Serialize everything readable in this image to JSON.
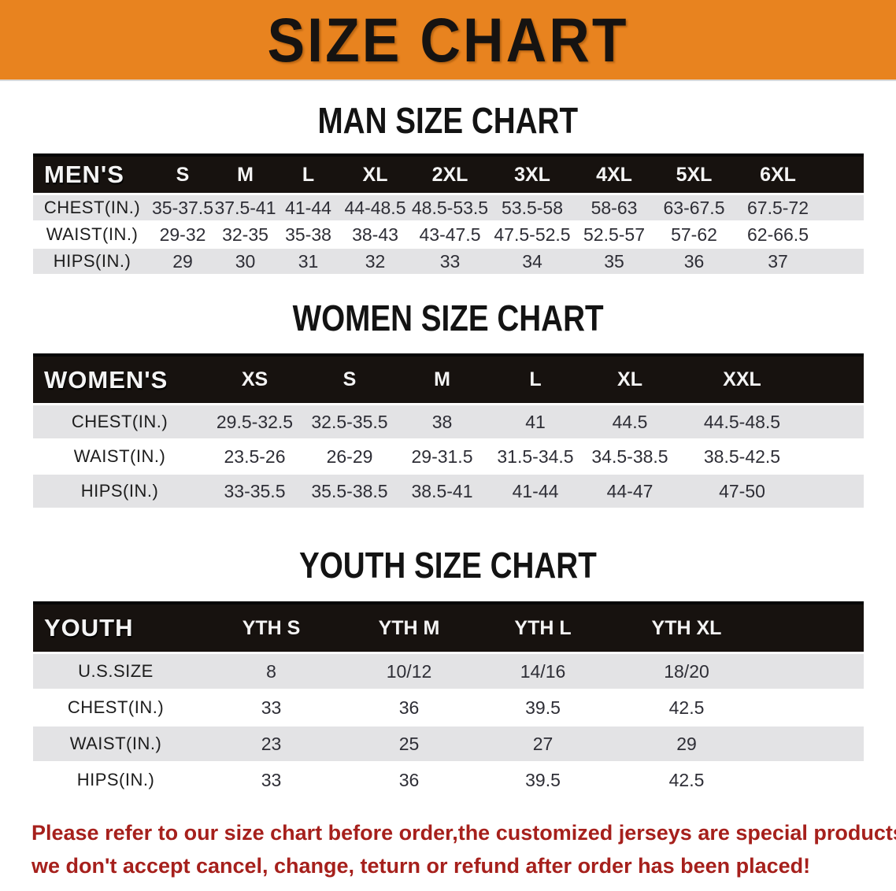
{
  "banner": {
    "title": "SIZE CHART",
    "bg_color": "#E8831F",
    "text_color": "#161311"
  },
  "sections": [
    {
      "id": "men",
      "heading": "MAN SIZE CHART",
      "table": {
        "header_label": "MEN'S",
        "columns": [
          "S",
          "M",
          "L",
          "XL",
          "2XL",
          "3XL",
          "4XL",
          "5XL",
          "6XL"
        ],
        "rows": [
          {
            "label": "CHEST(IN.)",
            "values": [
              "35-37.5",
              "37.5-41",
              "41-44",
              "44-48.5",
              "48.5-53.5",
              "53.5-58",
              "58-63",
              "63-67.5",
              "67.5-72"
            ]
          },
          {
            "label": "WAIST(IN.)",
            "values": [
              "29-32",
              "32-35",
              "35-38",
              "38-43",
              "43-47.5",
              "47.5-52.5",
              "52.5-57",
              "57-62",
              "62-66.5"
            ]
          },
          {
            "label": "HIPS(IN.)",
            "values": [
              "29",
              "30",
              "31",
              "32",
              "33",
              "34",
              "35",
              "36",
              "37"
            ]
          }
        ]
      }
    },
    {
      "id": "women",
      "heading": "WOMEN SIZE CHART",
      "table": {
        "header_label": "WOMEN'S",
        "columns": [
          "XS",
          "S",
          "M",
          "L",
          "XL",
          "XXL"
        ],
        "rows": [
          {
            "label": "CHEST(IN.)",
            "values": [
              "29.5-32.5",
              "32.5-35.5",
              "38",
              "41",
              "44.5",
              "44.5-48.5"
            ]
          },
          {
            "label": "WAIST(IN.)",
            "values": [
              "23.5-26",
              "26-29",
              "29-31.5",
              "31.5-34.5",
              "34.5-38.5",
              "38.5-42.5"
            ]
          },
          {
            "label": "HIPS(IN.)",
            "values": [
              "33-35.5",
              "35.5-38.5",
              "38.5-41",
              "41-44",
              "44-47",
              "47-50"
            ]
          }
        ]
      }
    },
    {
      "id": "youth",
      "heading": "YOUTH SIZE CHART",
      "table": {
        "header_label": "YOUTH",
        "columns": [
          "YTH S",
          "YTH M",
          "YTH L",
          "YTH XL"
        ],
        "rows": [
          {
            "label": "U.S.SIZE",
            "values": [
              "8",
              "10/12",
              "14/16",
              "18/20"
            ]
          },
          {
            "label": "CHEST(IN.)",
            "values": [
              "33",
              "36",
              "39.5",
              "42.5"
            ]
          },
          {
            "label": "WAIST(IN.)",
            "values": [
              "23",
              "25",
              "27",
              "29"
            ]
          },
          {
            "label": "HIPS(IN.)",
            "values": [
              "33",
              "36",
              "39.5",
              "42.5"
            ]
          }
        ]
      }
    }
  ],
  "disclaimer": {
    "line1": "Please refer to our size chart before order,the customized jerseys are special products,",
    "line2": "we don't accept cancel, change, teturn or refund after order has been placed!",
    "color": "#A6201C"
  }
}
